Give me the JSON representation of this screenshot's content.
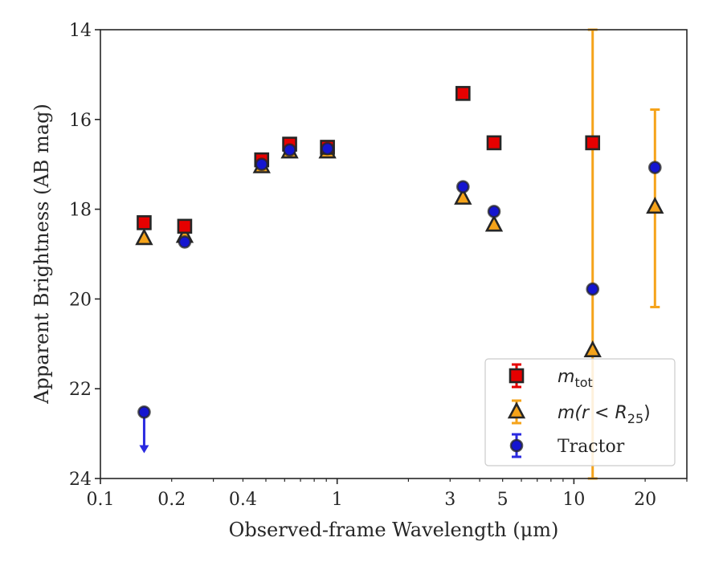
{
  "chart_data": {
    "type": "scatter",
    "title": "",
    "xlabel": "Observed-frame Wavelength (μm)",
    "ylabel": "Apparent Brightness (AB mag)",
    "xscale": "log",
    "xlim": [
      0.1,
      30
    ],
    "ylim": [
      24,
      14
    ],
    "y_inverted": true,
    "xticks": [
      0.1,
      0.2,
      0.4,
      1,
      3,
      5,
      10,
      20
    ],
    "xtick_labels": [
      "0.1",
      "0.2",
      "0.4",
      "1",
      "3",
      "5",
      "10",
      "20"
    ],
    "yticks": [
      14,
      16,
      18,
      20,
      22,
      24
    ],
    "ytick_labels": [
      "14",
      "16",
      "18",
      "20",
      "22",
      "24"
    ],
    "grid": false,
    "legend_position": "bottom-right",
    "series": [
      {
        "name": "m_tot",
        "legend_parts": [
          "m",
          "tot",
          ""
        ],
        "marker": "square",
        "face_color": "#e60000",
        "edge_color": "#262626",
        "error_color": "#e60000",
        "points": [
          {
            "x": 0.153,
            "y": 18.3
          },
          {
            "x": 0.227,
            "y": 18.38
          },
          {
            "x": 0.48,
            "y": 16.9
          },
          {
            "x": 0.63,
            "y": 16.55
          },
          {
            "x": 0.91,
            "y": 16.62
          },
          {
            "x": 3.4,
            "y": 15.42
          },
          {
            "x": 4.6,
            "y": 16.52
          },
          {
            "x": 12.0,
            "y": 16.52
          }
        ]
      },
      {
        "name": "m(r < R_25)",
        "legend_parts": [
          "m(r < R",
          "25",
          ")"
        ],
        "marker": "triangle",
        "face_color": "#f5a31a",
        "edge_color": "#262626",
        "error_color": "#f5a31a",
        "points": [
          {
            "x": 0.153,
            "y": 18.65
          },
          {
            "x": 0.227,
            "y": 18.6
          },
          {
            "x": 0.48,
            "y": 17.05
          },
          {
            "x": 0.63,
            "y": 16.72
          },
          {
            "x": 0.91,
            "y": 16.72
          },
          {
            "x": 3.4,
            "y": 17.75
          },
          {
            "x": 4.6,
            "y": 18.35
          },
          {
            "x": 12.0,
            "y": 21.15,
            "err_low": 14,
            "err_high": 24
          },
          {
            "x": 22.0,
            "y": 17.95,
            "err_low": 15.78,
            "err_high": 20.18
          }
        ]
      },
      {
        "name": "Tractor",
        "legend_parts": [
          "Tractor",
          "",
          ""
        ],
        "marker": "circle",
        "face_color": "#1515d0",
        "edge_color": "#262626",
        "error_color": "#2a2ae0",
        "points": [
          {
            "x": 0.153,
            "y": 22.52,
            "upper_limit": true,
            "arrow_to": 23.4
          },
          {
            "x": 0.227,
            "y": 18.73
          },
          {
            "x": 0.48,
            "y": 17.0
          },
          {
            "x": 0.63,
            "y": 16.68
          },
          {
            "x": 0.91,
            "y": 16.65
          },
          {
            "x": 3.4,
            "y": 17.5
          },
          {
            "x": 4.6,
            "y": 18.05
          },
          {
            "x": 12.0,
            "y": 19.78
          },
          {
            "x": 22.0,
            "y": 17.07
          }
        ]
      }
    ]
  }
}
